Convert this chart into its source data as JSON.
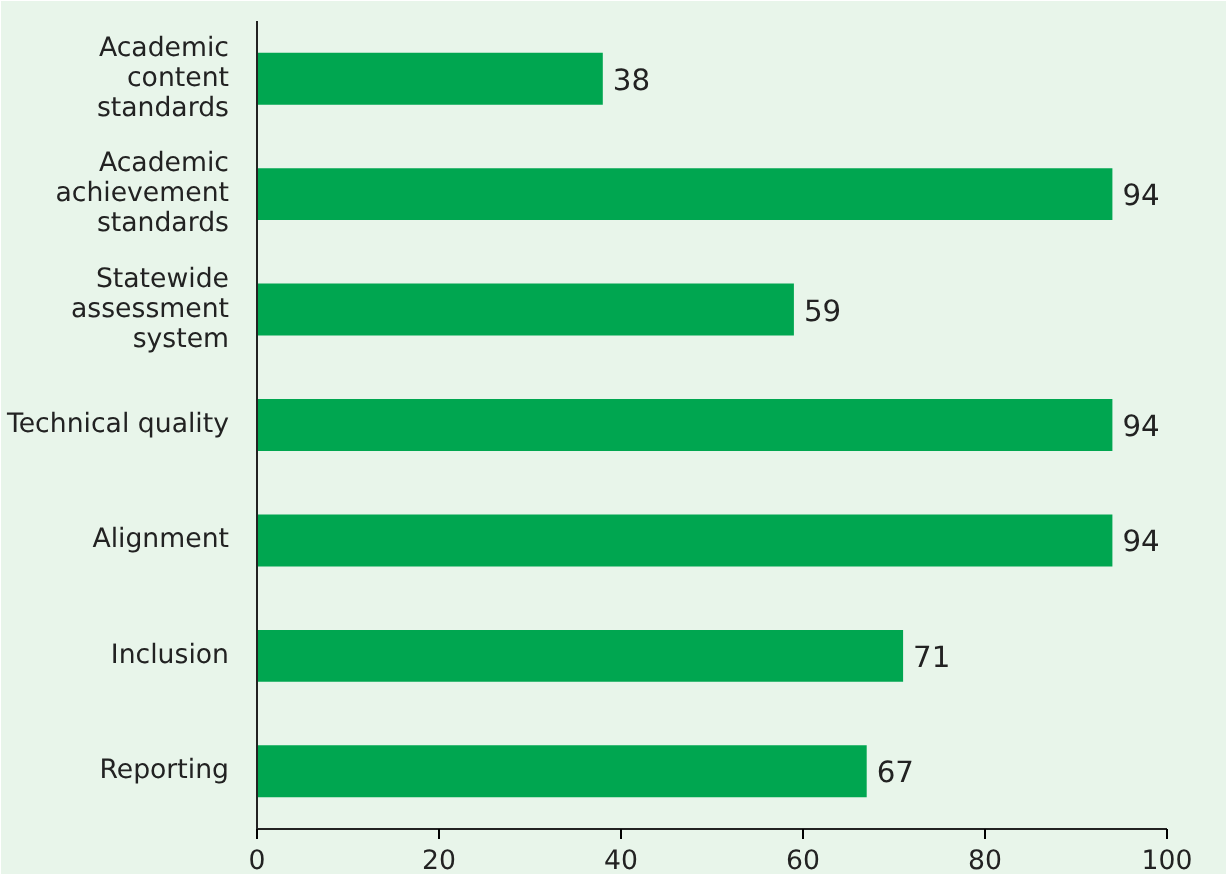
{
  "chart_data": {
    "type": "bar",
    "orientation": "horizontal",
    "categories": [
      "Academic\ncontent\nstandards",
      "Academic\nachievement\nstandards",
      "Statewide\nassessment\nsystem",
      "Technical quality",
      "Alignment",
      "Inclusion",
      "Reporting"
    ],
    "values": [
      38,
      94,
      59,
      94,
      94,
      71,
      67
    ],
    "color": "#00a650",
    "data_labels": true,
    "grid": false,
    "xlim": [
      0,
      100
    ],
    "xticks": [
      0,
      20,
      40,
      60,
      80,
      100
    ]
  }
}
